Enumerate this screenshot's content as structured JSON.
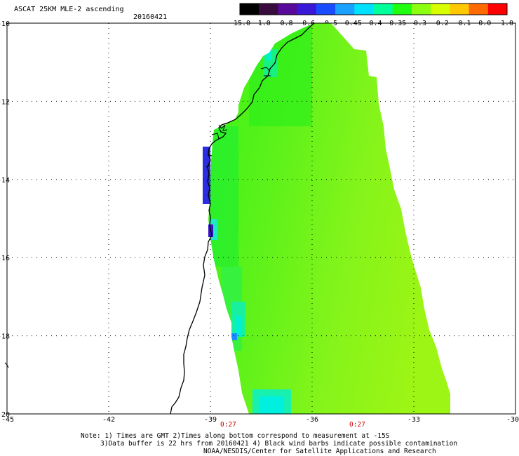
{
  "header": {
    "title": "ASCAT 25KM MLE-2 ascending",
    "date": "20160421"
  },
  "colorbar": {
    "labels": [
      "-15.0",
      "-1.0",
      "-0.8",
      "-0.6",
      "-0.5",
      "-0.45",
      "-0.4",
      "-0.35",
      "-0.3",
      "-0.2",
      "-0.1",
      "0.0",
      "1.0"
    ],
    "colors": [
      "#000000",
      "#3a0b3f",
      "#5a0a9a",
      "#3a18d8",
      "#1a4cff",
      "#1aa0ff",
      "#00e0ff",
      "#00ff9a",
      "#20ff10",
      "#8cff10",
      "#d8ff00",
      "#ffc800",
      "#ff6a00",
      "#ff0000"
    ]
  },
  "axes": {
    "lat_labels": [
      "-10",
      "-12",
      "-14",
      "-16",
      "-18",
      "-20"
    ],
    "lon_labels": [
      "-45",
      "-42",
      "-39",
      "-36",
      "-33",
      "-30"
    ],
    "lat_range": [
      -20,
      -10
    ],
    "lon_range": [
      -45,
      -30
    ]
  },
  "times": [
    "0:27",
    "0:27"
  ],
  "notes": {
    "line1": "Note: 1) Times are GMT 2)Times along bottom correspond to measurement at -15S",
    "line2": "3)Data buffer is 22 hrs from 20160421 4) Black wind barbs indicate possible contamination",
    "line3": "NOAA/NESDIS/Center for Satellite Applications and Research"
  }
}
